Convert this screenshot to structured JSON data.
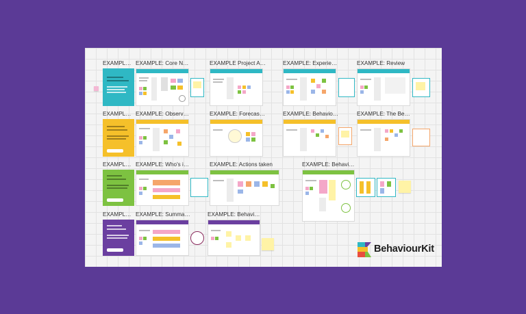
{
  "brand": {
    "name": "BehaviourKit",
    "colors": {
      "background": "#5b3a96",
      "teal": "#2fb8c4",
      "yellow": "#f5c02a",
      "green": "#7dc241",
      "purple": "#6b3fa0"
    }
  },
  "rows": [
    {
      "cover_title": "EXAMPLE: P...",
      "frames": [
        {
          "title": "EXAMPLE: Core Needs"
        },
        {
          "title": "EXAMPLE Project Aims"
        },
        {
          "title": "EXAMPLE: Experience"
        },
        {
          "title": "EXAMPLE: Review"
        }
      ]
    },
    {
      "cover_title": "EXAMPLE: P...",
      "frames": [
        {
          "title": "EXAMPLE: Observati..."
        },
        {
          "title": "EXAMPLE: Forecasting"
        },
        {
          "title": "EXAMPLE: Behaviour..."
        },
        {
          "title": "EXAMPLE: The Behav..."
        }
      ]
    },
    {
      "cover_title": "EXAMPLE: P...",
      "frames": [
        {
          "title": "EXAMPLE: Who's inv..."
        },
        {
          "title": "EXAMPLE: Actions taken"
        },
        {
          "title": "EXAMPLE: Behaviour..."
        }
      ]
    },
    {
      "cover_title": "EXAMPLE: P...",
      "frames": [
        {
          "title": "EXAMPLE: Summaris..."
        },
        {
          "title": "EXAMPLE: Behaviour..."
        }
      ]
    }
  ]
}
